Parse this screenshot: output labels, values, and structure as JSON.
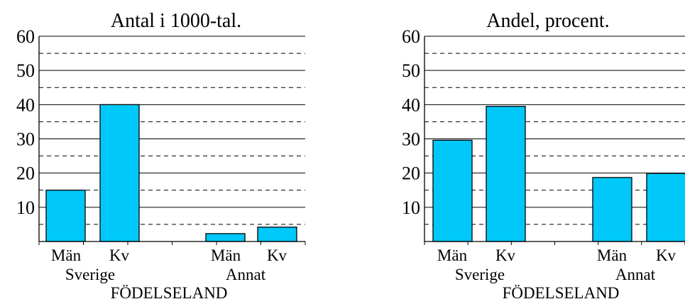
{
  "colors": {
    "bar": "#00c8f8",
    "bar_stroke": "#000000",
    "grid": "#000000",
    "background": "#ffffff"
  },
  "chart_data": [
    {
      "type": "bar",
      "title": "Antal  i 1000-tal.",
      "xlabel": "FÖDELSELAND",
      "ylabel": "",
      "ylim": [
        0,
        60
      ],
      "yticks": [
        10,
        20,
        30,
        40,
        50,
        60
      ],
      "grid": "solid lines at 10s, dashed lines at 5s",
      "groups": [
        "Sverige",
        "Annat"
      ],
      "categories": [
        "Män",
        "Kv",
        "Män",
        "Kv"
      ],
      "category_groups": [
        "Sverige",
        "Sverige",
        "Annat",
        "Annat"
      ],
      "values": [
        15,
        40,
        2.3,
        4.2
      ]
    },
    {
      "type": "bar",
      "title": "Andel, procent.",
      "xlabel": "FÖDELSELAND",
      "ylabel": "",
      "ylim": [
        0,
        60
      ],
      "yticks": [
        10,
        20,
        30,
        40,
        50,
        60
      ],
      "grid": "solid lines at 10s, dashed lines at 5s",
      "groups": [
        "Sverige",
        "Annat"
      ],
      "categories": [
        "Män",
        "Kv",
        "Män",
        "Kv"
      ],
      "category_groups": [
        "Sverige",
        "Sverige",
        "Annat",
        "Annat"
      ],
      "values": [
        29.6,
        39.5,
        18.7,
        19.9
      ]
    }
  ]
}
